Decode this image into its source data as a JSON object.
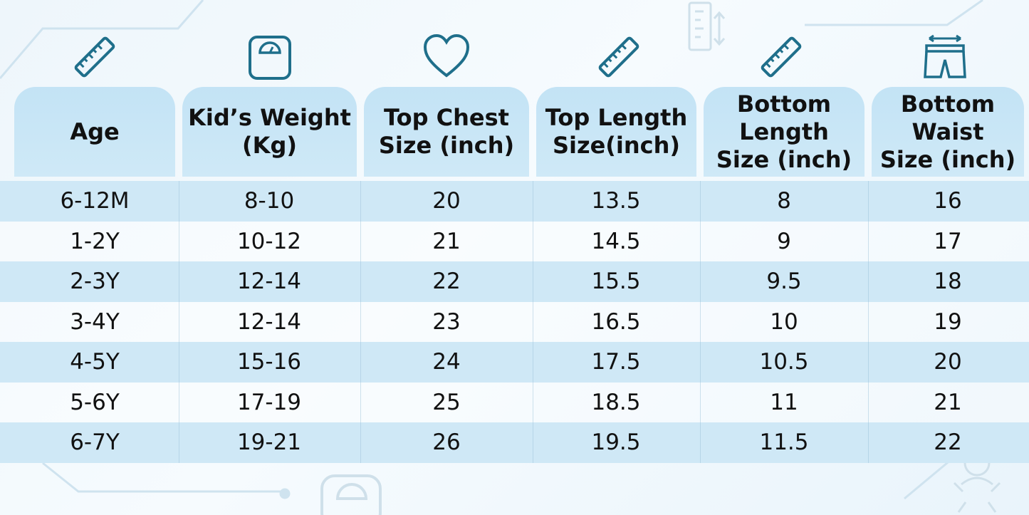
{
  "table": {
    "columns": [
      {
        "label": "Age",
        "icon": "ruler-icon"
      },
      {
        "label": "Kid’s Weight\n(Kg)",
        "icon": "weighing-scale-icon"
      },
      {
        "label": "Top Chest\nSize (inch)",
        "icon": "heart-icon"
      },
      {
        "label": "Top Length\nSize(inch)",
        "icon": "ruler-icon"
      },
      {
        "label": "Bottom\nLength\nSize (inch)",
        "icon": "ruler-icon"
      },
      {
        "label": "Bottom\nWaist\nSize (inch)",
        "icon": "shorts-waist-icon"
      }
    ],
    "rows": [
      [
        "6-12M",
        "8-10",
        "20",
        "13.5",
        "8",
        "16"
      ],
      [
        "1-2Y",
        "10-12",
        "21",
        "14.5",
        "9",
        "17"
      ],
      [
        "2-3Y",
        "12-14",
        "22",
        "15.5",
        "9.5",
        "18"
      ],
      [
        "3-4Y",
        "12-14",
        "23",
        "16.5",
        "10",
        "19"
      ],
      [
        "4-5Y",
        "15-16",
        "24",
        "17.5",
        "10.5",
        "20"
      ],
      [
        "5-6Y",
        "17-19",
        "25",
        "18.5",
        "11",
        "21"
      ],
      [
        "6-7Y",
        "19-21",
        "26",
        "19.5",
        "11.5",
        "22"
      ]
    ]
  },
  "colors": {
    "header_bg": "#c3e3f5",
    "row_shade": "#cfe8f6",
    "icon_stroke": "#1f6f8b",
    "background": "#eef6fb"
  },
  "decorations": [
    "height-measure-icon",
    "weighing-scale-icon",
    "baby-icon"
  ]
}
